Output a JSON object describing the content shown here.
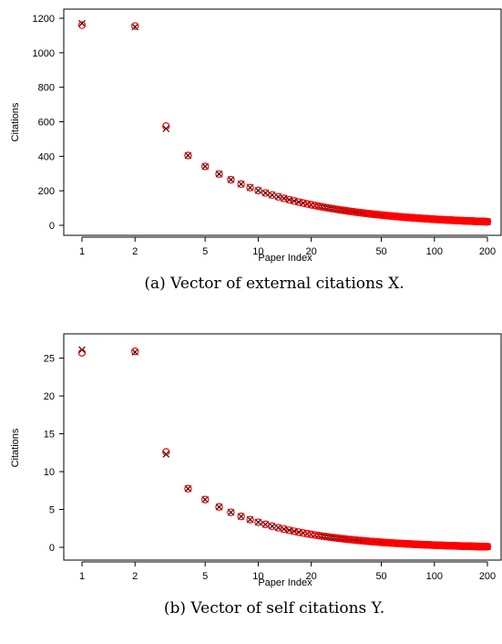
{
  "chart_data": [
    {
      "type": "scatter",
      "caption": "(a) Vector of external citations X.",
      "xlabel": "Paper Index",
      "ylabel": "Citations",
      "x_scale": "log",
      "xlim": [
        1,
        210
      ],
      "ylim": [
        0,
        1200
      ],
      "x_ticks": [
        1,
        2,
        5,
        10,
        20,
        50,
        100,
        200
      ],
      "y_ticks": [
        0,
        200,
        400,
        600,
        800,
        1000,
        1200
      ],
      "grid": false,
      "series": [
        {
          "marker": "x",
          "color": "#000000",
          "power_law": {
            "scale": 1160,
            "exponent": 0.76,
            "from_index": 4,
            "to_index": 200
          },
          "x": [
            1,
            2,
            3
          ],
          "y": [
            1170,
            1150,
            560
          ]
        },
        {
          "marker": "o",
          "color": "#ff0000",
          "power_law": {
            "scale": 1160,
            "exponent": 0.76,
            "from_index": 4,
            "to_index": 200
          },
          "x": [
            1,
            2,
            3
          ],
          "y": [
            1160,
            1155,
            575
          ]
        }
      ]
    },
    {
      "type": "scatter",
      "caption": "(b) Vector of self citations Y.",
      "xlabel": "Paper Index",
      "ylabel": "Citations",
      "x_scale": "log",
      "xlim": [
        1,
        210
      ],
      "ylim": [
        0,
        27
      ],
      "x_ticks": [
        1,
        2,
        5,
        10,
        20,
        50,
        100,
        200
      ],
      "y_ticks": [
        0,
        5,
        10,
        15,
        20,
        25
      ],
      "grid": false,
      "series": [
        {
          "marker": "x",
          "color": "#000000",
          "power_law": {
            "scale": 27.5,
            "exponent": 0.9,
            "offset": -0.15,
            "from_index": 4,
            "to_index": 200
          },
          "x": [
            1,
            2,
            3
          ],
          "y": [
            26.1,
            25.8,
            12.3
          ]
        },
        {
          "marker": "o",
          "color": "#ff0000",
          "power_law": {
            "scale": 27.5,
            "exponent": 0.9,
            "offset": -0.15,
            "from_index": 4,
            "to_index": 200
          },
          "x": [
            1,
            2,
            3
          ],
          "y": [
            25.7,
            25.9,
            12.6
          ]
        }
      ]
    }
  ]
}
